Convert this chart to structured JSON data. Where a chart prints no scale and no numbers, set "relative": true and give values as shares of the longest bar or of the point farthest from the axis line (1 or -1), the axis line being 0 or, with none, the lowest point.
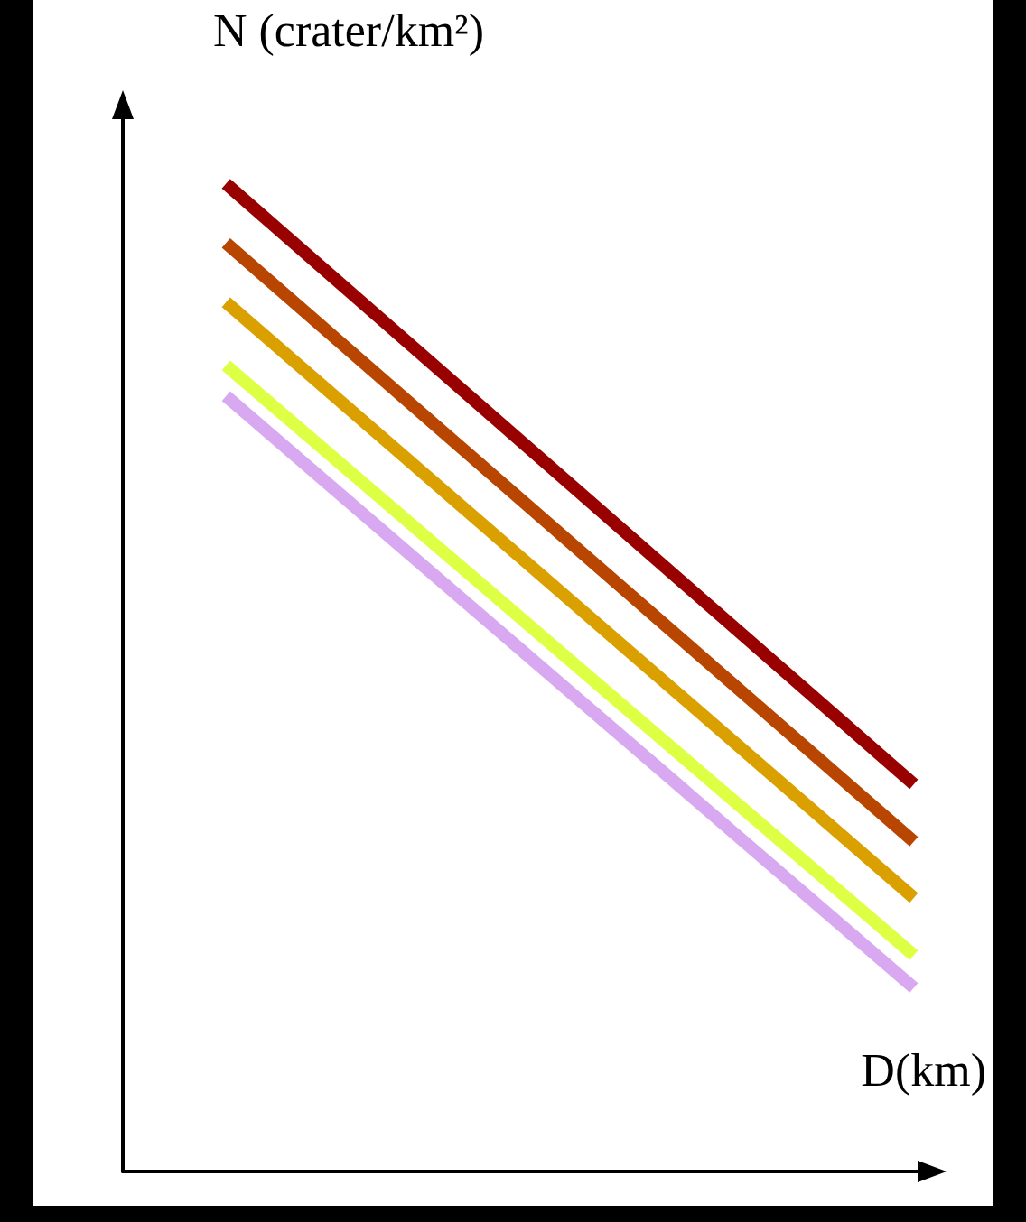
{
  "chart_data": {
    "type": "line",
    "relative": true,
    "xlabel": "D(km)",
    "ylabel": "N (crater/km²)",
    "categories": [
      null,
      null
    ],
    "grid": false,
    "marker": "none",
    "line_style": "solid",
    "series": [
      {
        "color": "#990000",
        "values": [
          1,
          0.392
        ]
      },
      {
        "color": "#b84500",
        "values": [
          0.94,
          0.334
        ]
      },
      {
        "color": "#d9a000",
        "values": [
          0.88,
          0.277
        ]
      },
      {
        "color": "#ddff44",
        "values": [
          0.816,
          0.219
        ]
      },
      {
        "color": "#d8a8f0",
        "values": [
          0.785,
          0.186
        ]
      }
    ]
  }
}
